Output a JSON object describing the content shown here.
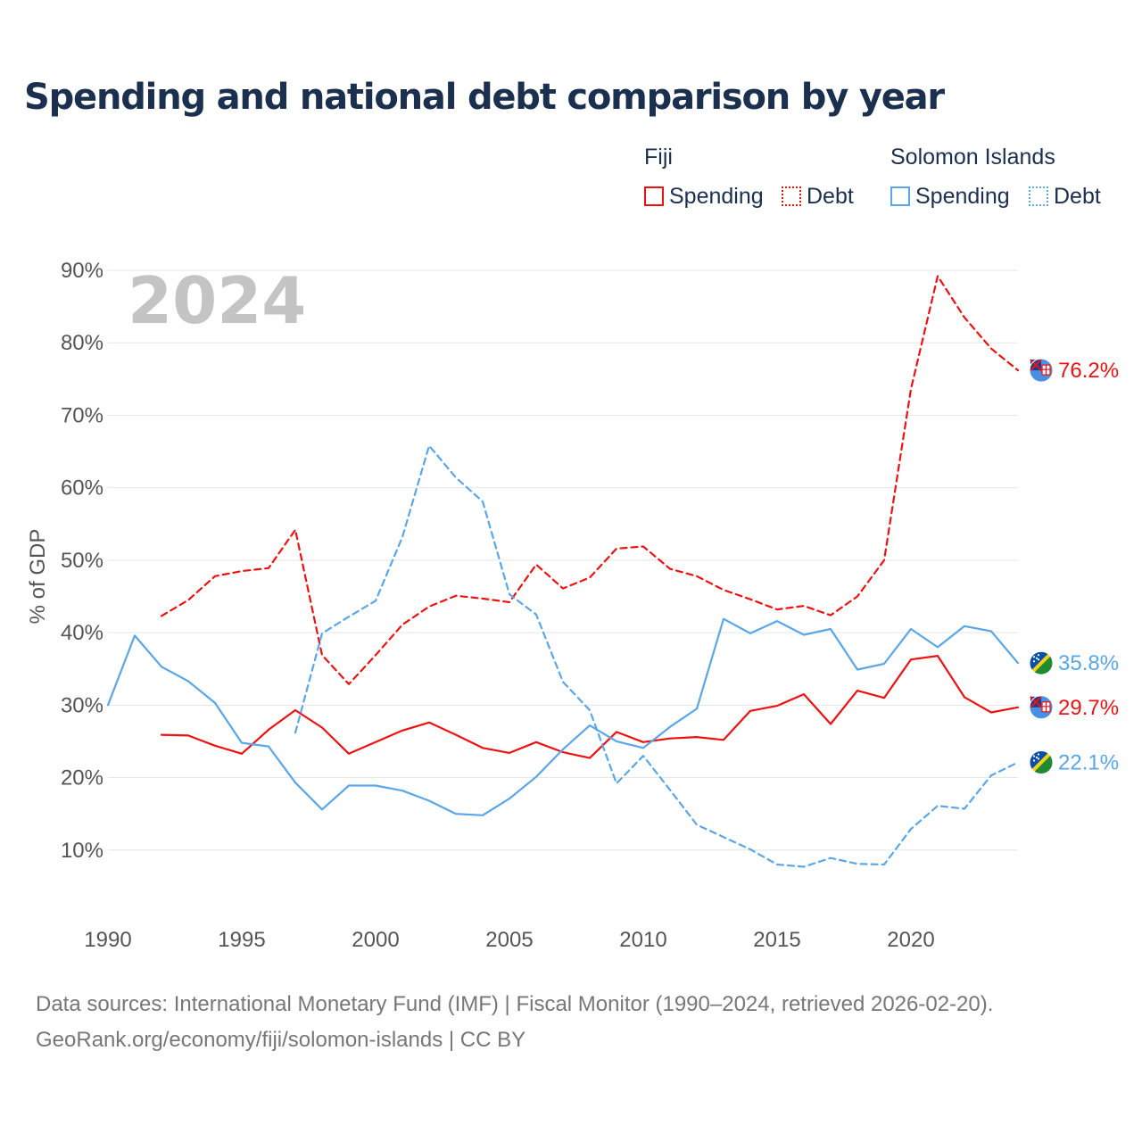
{
  "colors": {
    "title": "#1b2f4e",
    "fiji": "#ee1111",
    "solomon": "#5aa6e6",
    "axis_text": "#555555",
    "grid": "#e6e6e6",
    "year_watermark": "#c4c4c4",
    "footer": "#777777"
  },
  "chart_data": {
    "type": "line",
    "title": "Spending and national debt comparison by year",
    "year_watermark": "2024",
    "ylabel": "% of GDP",
    "xlabel": "",
    "xlim": [
      1990,
      2024
    ],
    "ylim": [
      0,
      90
    ],
    "x_ticks": [
      1990,
      1995,
      2000,
      2005,
      2010,
      2015,
      2020
    ],
    "y_ticks": [
      {
        "value": 10,
        "label": "10%"
      },
      {
        "value": 20,
        "label": "20%"
      },
      {
        "value": 30,
        "label": "30%"
      },
      {
        "value": 40,
        "label": "40%"
      },
      {
        "value": 50,
        "label": "50%"
      },
      {
        "value": 60,
        "label": "60%"
      },
      {
        "value": 70,
        "label": "70%"
      },
      {
        "value": 80,
        "label": "80%"
      },
      {
        "value": 90,
        "label": "90%"
      }
    ],
    "legend": {
      "placement": "top-right",
      "groups": [
        {
          "name": "Fiji",
          "color_key": "fiji",
          "items": [
            {
              "label": "Spending",
              "style": "solid"
            },
            {
              "label": "Debt",
              "style": "dotted"
            }
          ]
        },
        {
          "name": "Solomon Islands",
          "color_key": "solomon",
          "items": [
            {
              "label": "Spending",
              "style": "solid"
            },
            {
              "label": "Debt",
              "style": "dotted"
            }
          ]
        }
      ]
    },
    "series": [
      {
        "name": "Fiji Spending",
        "country": "Fiji",
        "kind": "spending",
        "color_key": "fiji",
        "dash": false,
        "end_label": "29.7%",
        "points": [
          [
            1992,
            25.9
          ],
          [
            1993,
            25.8
          ],
          [
            1994,
            24.4
          ],
          [
            1995,
            23.3
          ],
          [
            1996,
            26.6
          ],
          [
            1997,
            29.3
          ],
          [
            1998,
            26.9
          ],
          [
            1999,
            23.3
          ],
          [
            2000,
            24.9
          ],
          [
            2001,
            26.5
          ],
          [
            2002,
            27.6
          ],
          [
            2003,
            25.9
          ],
          [
            2004,
            24.1
          ],
          [
            2005,
            23.4
          ],
          [
            2006,
            24.9
          ],
          [
            2007,
            23.5
          ],
          [
            2008,
            22.7
          ],
          [
            2009,
            26.3
          ],
          [
            2010,
            24.9
          ],
          [
            2011,
            25.4
          ],
          [
            2012,
            25.6
          ],
          [
            2013,
            25.2
          ],
          [
            2014,
            29.2
          ],
          [
            2015,
            29.9
          ],
          [
            2016,
            31.5
          ],
          [
            2017,
            27.4
          ],
          [
            2018,
            32.0
          ],
          [
            2019,
            31.0
          ],
          [
            2020,
            36.3
          ],
          [
            2021,
            36.8
          ],
          [
            2022,
            31.1
          ],
          [
            2023,
            29.0
          ],
          [
            2024,
            29.7
          ]
        ]
      },
      {
        "name": "Fiji Debt",
        "country": "Fiji",
        "kind": "debt",
        "color_key": "fiji",
        "dash": true,
        "end_label": "76.2%",
        "points": [
          [
            1992,
            42.3
          ],
          [
            1993,
            44.5
          ],
          [
            1994,
            47.8
          ],
          [
            1995,
            48.5
          ],
          [
            1996,
            48.9
          ],
          [
            1997,
            54.2
          ],
          [
            1998,
            36.9
          ],
          [
            1999,
            32.9
          ],
          [
            2000,
            36.9
          ],
          [
            2001,
            41.1
          ],
          [
            2002,
            43.6
          ],
          [
            2003,
            45.1
          ],
          [
            2004,
            44.7
          ],
          [
            2005,
            44.2
          ],
          [
            2006,
            49.4
          ],
          [
            2007,
            46.1
          ],
          [
            2008,
            47.6
          ],
          [
            2009,
            51.6
          ],
          [
            2010,
            51.9
          ],
          [
            2011,
            48.8
          ],
          [
            2012,
            47.8
          ],
          [
            2013,
            45.9
          ],
          [
            2014,
            44.6
          ],
          [
            2015,
            43.2
          ],
          [
            2016,
            43.7
          ],
          [
            2017,
            42.4
          ],
          [
            2018,
            45.0
          ],
          [
            2019,
            50.0
          ],
          [
            2020,
            73.6
          ],
          [
            2021,
            89.2
          ],
          [
            2022,
            83.5
          ],
          [
            2023,
            79.2
          ],
          [
            2024,
            76.2
          ]
        ]
      },
      {
        "name": "Solomon Islands Spending",
        "country": "Solomon Islands",
        "kind": "spending",
        "color_key": "solomon",
        "dash": false,
        "end_label": "35.8%",
        "points": [
          [
            1990,
            30.0
          ],
          [
            1991,
            39.6
          ],
          [
            1992,
            35.3
          ],
          [
            1993,
            33.3
          ],
          [
            1994,
            30.3
          ],
          [
            1995,
            24.8
          ],
          [
            1996,
            24.3
          ],
          [
            1997,
            19.3
          ],
          [
            1998,
            15.6
          ],
          [
            1999,
            18.9
          ],
          [
            2000,
            18.9
          ],
          [
            2001,
            18.2
          ],
          [
            2002,
            16.8
          ],
          [
            2003,
            15.0
          ],
          [
            2004,
            14.8
          ],
          [
            2005,
            17.1
          ],
          [
            2006,
            20.1
          ],
          [
            2007,
            23.9
          ],
          [
            2008,
            27.2
          ],
          [
            2009,
            25.0
          ],
          [
            2010,
            24.1
          ],
          [
            2011,
            27.0
          ],
          [
            2012,
            29.5
          ],
          [
            2013,
            41.9
          ],
          [
            2014,
            39.9
          ],
          [
            2015,
            41.6
          ],
          [
            2016,
            39.7
          ],
          [
            2017,
            40.5
          ],
          [
            2018,
            34.9
          ],
          [
            2019,
            35.7
          ],
          [
            2020,
            40.5
          ],
          [
            2021,
            38.0
          ],
          [
            2022,
            40.9
          ],
          [
            2023,
            40.2
          ],
          [
            2024,
            35.8
          ]
        ]
      },
      {
        "name": "Solomon Islands Debt",
        "country": "Solomon Islands",
        "kind": "debt",
        "color_key": "solomon",
        "dash": true,
        "end_label": "22.1%",
        "points": [
          [
            1997,
            26.2
          ],
          [
            1998,
            39.9
          ],
          [
            1999,
            42.2
          ],
          [
            2000,
            44.4
          ],
          [
            2001,
            53.2
          ],
          [
            2002,
            65.8
          ],
          [
            2003,
            61.4
          ],
          [
            2004,
            58.1
          ],
          [
            2005,
            45.3
          ],
          [
            2006,
            42.5
          ],
          [
            2007,
            33.2
          ],
          [
            2008,
            29.3
          ],
          [
            2009,
            19.2
          ],
          [
            2010,
            23.0
          ],
          [
            2011,
            18.3
          ],
          [
            2012,
            13.5
          ],
          [
            2013,
            11.8
          ],
          [
            2014,
            10.1
          ],
          [
            2015,
            8.0
          ],
          [
            2016,
            7.7
          ],
          [
            2017,
            8.9
          ],
          [
            2018,
            8.1
          ],
          [
            2019,
            8.0
          ],
          [
            2020,
            12.9
          ],
          [
            2021,
            16.1
          ],
          [
            2022,
            15.7
          ],
          [
            2023,
            20.3
          ],
          [
            2024,
            22.1
          ]
        ]
      }
    ]
  },
  "footer": {
    "line1": "Data sources: International Monetary Fund (IMF) | Fiscal Monitor (1990–2024, retrieved 2026-02-20).",
    "line2": "GeoRank.org/economy/fiji/solomon-islands | CC BY"
  }
}
